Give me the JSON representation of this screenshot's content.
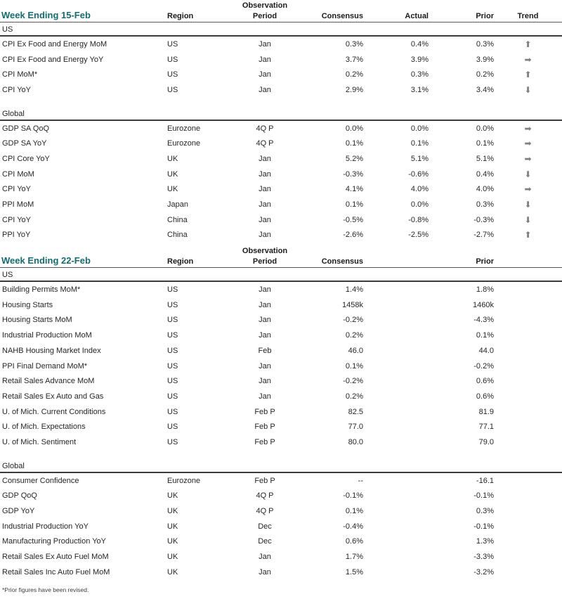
{
  "colors": {
    "accent": "#116E70",
    "arrow": "#7F7F7F",
    "header_border": "#595959",
    "section_border": "#3C3C3C"
  },
  "trend_glyphs": {
    "up": "⬆",
    "flat": "➡",
    "down": "⬇"
  },
  "footnote": "*Prior figures have been revised.",
  "tables": [
    {
      "title": "Week Ending 15-Feb",
      "fields": [
        "indicator",
        "region",
        "period",
        "consensus",
        "actual",
        "prior",
        "trend"
      ],
      "columns": {
        "obs_line1": "Observation",
        "region": "Region",
        "period": "Period",
        "consensus": "Consensus",
        "actual": "Actual",
        "prior": "Prior",
        "trend": "Trend"
      },
      "sections": [
        {
          "label": "US",
          "rows": [
            {
              "indicator": "CPI Ex Food and Energy MoM",
              "region": "US",
              "period": "Jan",
              "consensus": "0.3%",
              "actual": "0.4%",
              "prior": "0.3%",
              "trend": "up"
            },
            {
              "indicator": "CPI Ex Food and Energy YoY",
              "region": "US",
              "period": "Jan",
              "consensus": "3.7%",
              "actual": "3.9%",
              "prior": "3.9%",
              "trend": "flat"
            },
            {
              "indicator": "CPI MoM*",
              "region": "US",
              "period": "Jan",
              "consensus": "0.2%",
              "actual": "0.3%",
              "prior": "0.2%",
              "trend": "up"
            },
            {
              "indicator": "CPI YoY",
              "region": "US",
              "period": "Jan",
              "consensus": "2.9%",
              "actual": "3.1%",
              "prior": "3.4%",
              "trend": "down"
            }
          ]
        },
        {
          "label": "Global",
          "rows": [
            {
              "indicator": "GDP SA QoQ",
              "region": "Eurozone",
              "period": "4Q P",
              "consensus": "0.0%",
              "actual": "0.0%",
              "prior": "0.0%",
              "trend": "flat"
            },
            {
              "indicator": "GDP SA YoY",
              "region": "Eurozone",
              "period": "4Q P",
              "consensus": "0.1%",
              "actual": "0.1%",
              "prior": "0.1%",
              "trend": "flat"
            },
            {
              "indicator": "CPI Core YoY",
              "region": "UK",
              "period": "Jan",
              "consensus": "5.2%",
              "actual": "5.1%",
              "prior": "5.1%",
              "trend": "flat"
            },
            {
              "indicator": "CPI MoM",
              "region": "UK",
              "period": "Jan",
              "consensus": "-0.3%",
              "actual": "-0.6%",
              "prior": "0.4%",
              "trend": "down"
            },
            {
              "indicator": "CPI YoY",
              "region": "UK",
              "period": "Jan",
              "consensus": "4.1%",
              "actual": "4.0%",
              "prior": "4.0%",
              "trend": "flat"
            },
            {
              "indicator": "PPI MoM",
              "region": "Japan",
              "period": "Jan",
              "consensus": "0.1%",
              "actual": "0.0%",
              "prior": "0.3%",
              "trend": "down"
            },
            {
              "indicator": "CPI YoY",
              "region": "China",
              "period": "Jan",
              "consensus": "-0.5%",
              "actual": "-0.8%",
              "prior": "-0.3%",
              "trend": "down"
            },
            {
              "indicator": "PPI YoY",
              "region": "China",
              "period": "Jan",
              "consensus": "-2.6%",
              "actual": "-2.5%",
              "prior": "-2.7%",
              "trend": "up"
            }
          ]
        }
      ]
    },
    {
      "title": "Week Ending 22-Feb",
      "fields": [
        "indicator",
        "region",
        "period",
        "consensus",
        "prior"
      ],
      "columns": {
        "obs_line1": "Observation",
        "region": "Region",
        "period": "Period",
        "consensus": "Consensus",
        "prior": "Prior"
      },
      "sections": [
        {
          "label": "US",
          "rows": [
            {
              "indicator": "Building Permits MoM*",
              "region": "US",
              "period": "Jan",
              "consensus": "1.4%",
              "prior": "1.8%"
            },
            {
              "indicator": "Housing Starts",
              "region": "US",
              "period": "Jan",
              "consensus": "1458k",
              "prior": "1460k"
            },
            {
              "indicator": "Housing Starts MoM",
              "region": "US",
              "period": "Jan",
              "consensus": "-0.2%",
              "prior": "-4.3%"
            },
            {
              "indicator": "Industrial Production MoM",
              "region": "US",
              "period": "Jan",
              "consensus": "0.2%",
              "prior": "0.1%"
            },
            {
              "indicator": "NAHB Housing Market Index",
              "region": "US",
              "period": "Feb",
              "consensus": "46.0",
              "prior": "44.0"
            },
            {
              "indicator": "PPI Final Demand MoM*",
              "region": "US",
              "period": "Jan",
              "consensus": "0.1%",
              "prior": "-0.2%"
            },
            {
              "indicator": "Retail Sales Advance MoM",
              "region": "US",
              "period": "Jan",
              "consensus": "-0.2%",
              "prior": "0.6%"
            },
            {
              "indicator": "Retail Sales Ex Auto and Gas",
              "region": "US",
              "period": "Jan",
              "consensus": "0.2%",
              "prior": "0.6%"
            },
            {
              "indicator": "U. of Mich. Current Conditions",
              "region": "US",
              "period": "Feb P",
              "consensus": "82.5",
              "prior": "81.9"
            },
            {
              "indicator": "U. of Mich. Expectations",
              "region": "US",
              "period": "Feb P",
              "consensus": "77.0",
              "prior": "77.1"
            },
            {
              "indicator": "U. of Mich. Sentiment",
              "region": "US",
              "period": "Feb P",
              "consensus": "80.0",
              "prior": "79.0"
            }
          ]
        },
        {
          "label": "Global",
          "rows": [
            {
              "indicator": "Consumer Confidence",
              "region": "Eurozone",
              "period": "Feb P",
              "consensus": "--",
              "prior": "-16.1"
            },
            {
              "indicator": "GDP QoQ",
              "region": "UK",
              "period": "4Q P",
              "consensus": "-0.1%",
              "prior": "-0.1%"
            },
            {
              "indicator": "GDP YoY",
              "region": "UK",
              "period": "4Q P",
              "consensus": "0.1%",
              "prior": "0.3%"
            },
            {
              "indicator": "Industrial Production YoY",
              "region": "UK",
              "period": "Dec",
              "consensus": "-0.4%",
              "prior": "-0.1%"
            },
            {
              "indicator": "Manufacturing Production YoY",
              "region": "UK",
              "period": "Dec",
              "consensus": "0.6%",
              "prior": "1.3%"
            },
            {
              "indicator": "Retail Sales Ex Auto Fuel MoM",
              "region": "UK",
              "period": "Jan",
              "consensus": "1.7%",
              "prior": "-3.3%"
            },
            {
              "indicator": "Retail Sales Inc Auto Fuel MoM",
              "region": "UK",
              "period": "Jan",
              "consensus": "1.5%",
              "prior": "-3.2%"
            }
          ]
        }
      ]
    }
  ]
}
